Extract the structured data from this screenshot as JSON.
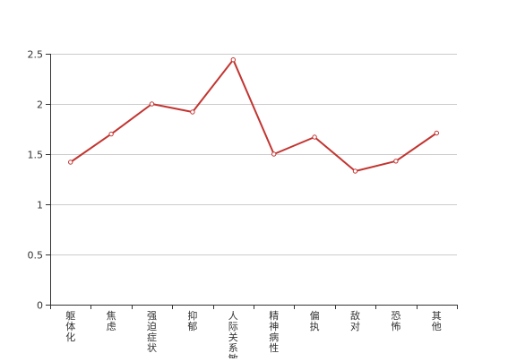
{
  "chart_data": {
    "type": "line",
    "title": "",
    "xlabel": "",
    "ylabel": "",
    "categories": [
      "躯体化",
      "焦虑",
      "强迫症状",
      "抑郁",
      "人际关系敏感",
      "精神病性",
      "偏执",
      "敌对",
      "恐怖",
      "其他"
    ],
    "series": [
      {
        "values": [
          1.42,
          1.7,
          2.0,
          1.92,
          2.44,
          1.5,
          1.67,
          1.33,
          1.43,
          1.71
        ]
      }
    ],
    "ylim": [
      0,
      2.5
    ],
    "yticks": [
      0,
      0.5,
      1,
      1.5,
      2,
      2.5
    ],
    "grid": true,
    "legend": "none",
    "colors": {
      "line": "#c23531",
      "grid": "#cccccc",
      "axis": "#333333"
    }
  }
}
